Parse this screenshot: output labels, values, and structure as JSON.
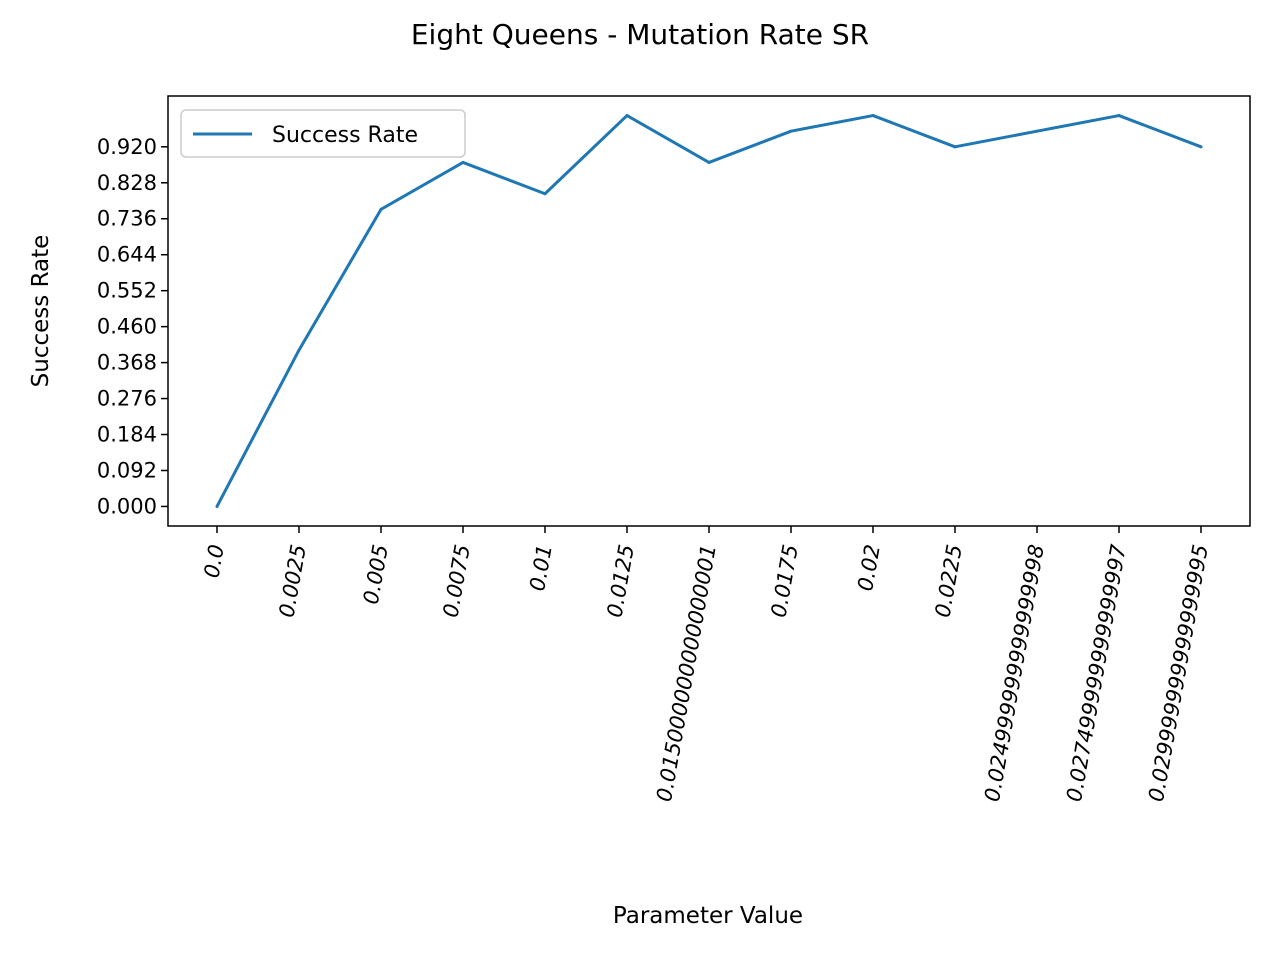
{
  "chart_data": {
    "type": "line",
    "title": "Eight Queens - Mutation Rate SR",
    "xlabel": "Parameter Value",
    "ylabel": "Success Rate",
    "categories": [
      "0.0",
      "0.0025",
      "0.005",
      "0.0075",
      "0.01",
      "0.0125",
      "0.015000000000000001",
      "0.0175",
      "0.02",
      "0.0225",
      "0.024999999999999998",
      "0.027499999999999997",
      "0.029999999999999995"
    ],
    "series": [
      {
        "name": "Success Rate",
        "color": "#1f77b4",
        "values": [
          0.0,
          0.4,
          0.76,
          0.88,
          0.8,
          1.0,
          0.88,
          0.96,
          1.0,
          0.92,
          0.96,
          1.0,
          0.92
        ]
      }
    ],
    "y_ticks": [
      "0.000",
      "0.092",
      "0.184",
      "0.276",
      "0.368",
      "0.460",
      "0.552",
      "0.644",
      "0.736",
      "0.828",
      "0.920"
    ],
    "ylim": [
      -0.05,
      1.05
    ],
    "grid": false,
    "legend_position": "upper-left"
  }
}
